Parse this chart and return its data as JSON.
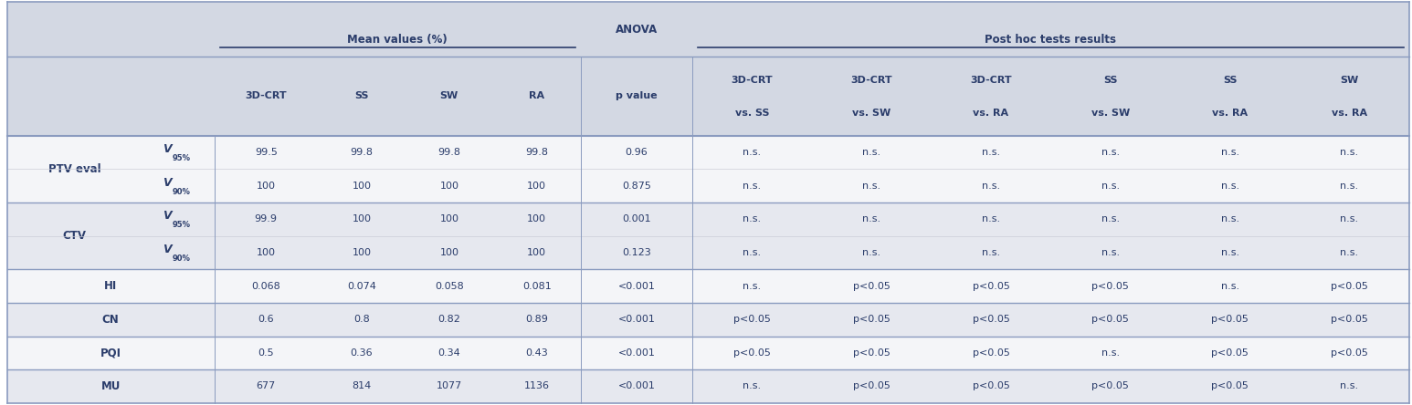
{
  "header_bg": "#d3d8e3",
  "row_bg_white": "#f4f5f8",
  "row_bg_gray": "#e6e8ef",
  "text_color": "#2b3d6b",
  "sep_color": "#8a9bbf",
  "header2_labels": [
    "3D-CRT",
    "SS",
    "SW",
    "RA",
    "p value",
    "3D-CRT\nvs. SS",
    "3D-CRT\nvs. SW",
    "3D-CRT\nvs. RA",
    "SS\nvs. SW",
    "SS\nvs. RA",
    "SW\nvs. RA"
  ],
  "rows": [
    {
      "group": "PTV eval",
      "sub": "V95%",
      "sub_super": "95%",
      "vals": [
        "99.5",
        "99.8",
        "99.8",
        "99.8",
        "0.96",
        "n.s.",
        "n.s.",
        "n.s.",
        "n.s.",
        "n.s.",
        "n.s."
      ],
      "bg": "white"
    },
    {
      "group": "PTV eval",
      "sub": "V90%",
      "sub_super": "90%",
      "vals": [
        "100",
        "100",
        "100",
        "100",
        "0.875",
        "n.s.",
        "n.s.",
        "n.s.",
        "n.s.",
        "n.s.",
        "n.s."
      ],
      "bg": "white"
    },
    {
      "group": "CTV",
      "sub": "V95%",
      "sub_super": "95%",
      "vals": [
        "99.9",
        "100",
        "100",
        "100",
        "0.001",
        "n.s.",
        "n.s.",
        "n.s.",
        "n.s.",
        "n.s.",
        "n.s."
      ],
      "bg": "gray"
    },
    {
      "group": "CTV",
      "sub": "V90%",
      "sub_super": "90%",
      "vals": [
        "100",
        "100",
        "100",
        "100",
        "0.123",
        "n.s.",
        "n.s.",
        "n.s.",
        "n.s.",
        "n.s.",
        "n.s."
      ],
      "bg": "gray"
    },
    {
      "group": "HI",
      "sub": "",
      "sub_super": "",
      "vals": [
        "0.068",
        "0.074",
        "0.058",
        "0.081",
        "<0.001",
        "n.s.",
        "p<0.05",
        "p<0.05",
        "p<0.05",
        "n.s.",
        "p<0.05"
      ],
      "bg": "white"
    },
    {
      "group": "CN",
      "sub": "",
      "sub_super": "",
      "vals": [
        "0.6",
        "0.8",
        "0.82",
        "0.89",
        "<0.001",
        "p<0.05",
        "p<0.05",
        "p<0.05",
        "p<0.05",
        "p<0.05",
        "p<0.05"
      ],
      "bg": "gray"
    },
    {
      "group": "PQI",
      "sub": "",
      "sub_super": "",
      "vals": [
        "0.5",
        "0.36",
        "0.34",
        "0.43",
        "<0.001",
        "p<0.05",
        "p<0.05",
        "p<0.05",
        "n.s.",
        "p<0.05",
        "p<0.05"
      ],
      "bg": "white"
    },
    {
      "group": "MU",
      "sub": "",
      "sub_super": "",
      "vals": [
        "677",
        "814",
        "1077",
        "1136",
        "<0.001",
        "n.s.",
        "p<0.05",
        "p<0.05",
        "p<0.05",
        "p<0.05",
        "n.s."
      ],
      "bg": "gray"
    }
  ],
  "col_rel_widths": [
    8.5,
    4.5,
    6.5,
    5.5,
    5.5,
    5.5,
    7.0,
    7.5,
    7.5,
    7.5,
    7.5,
    7.5,
    7.5
  ]
}
